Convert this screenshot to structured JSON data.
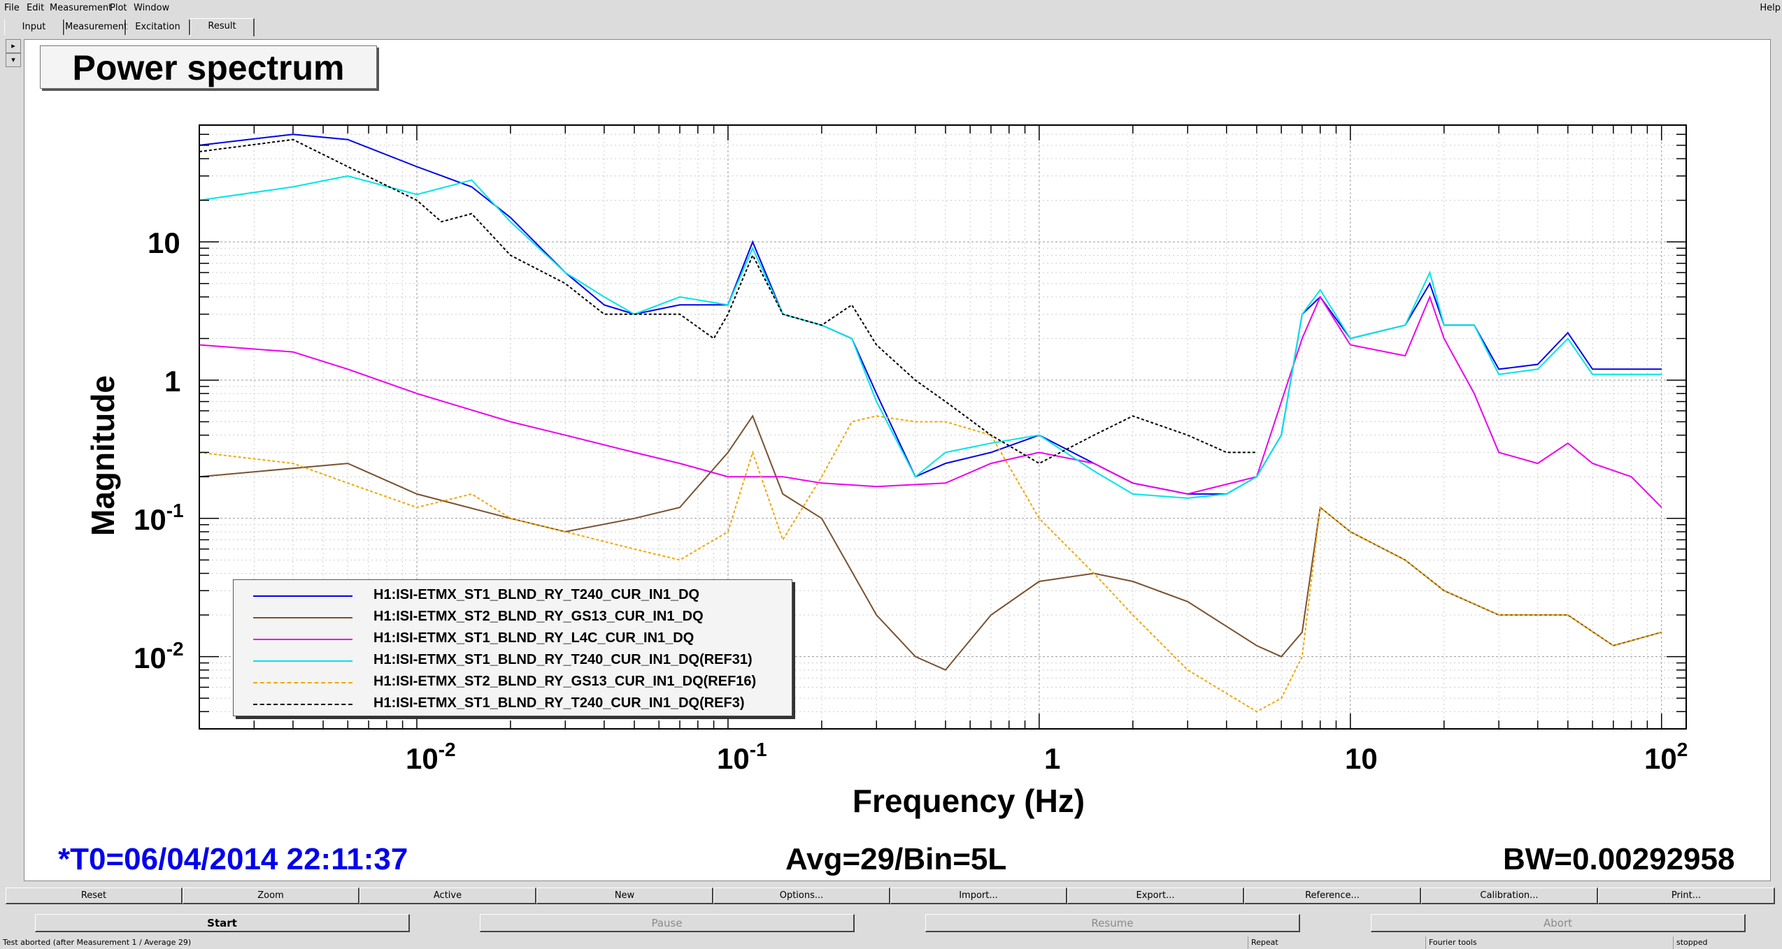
{
  "menu": {
    "items": [
      "File",
      "Edit",
      "Measurement",
      "Plot",
      "Window"
    ],
    "help": "Help"
  },
  "tabs": [
    "Input",
    "Measurement",
    "Excitation",
    "Result"
  ],
  "active_tab": "Result",
  "plot": {
    "title": "Power spectrum",
    "ylabel": "Magnitude",
    "xlabel": "Frequency (Hz)",
    "x_ticks": [
      {
        "base": "10",
        "exp": "-2"
      },
      {
        "base": "10",
        "exp": "-1"
      },
      {
        "base": "1",
        "exp": ""
      },
      {
        "base": "10",
        "exp": ""
      },
      {
        "base": "10",
        "exp": "2"
      }
    ],
    "y_ticks": [
      {
        "base": "10",
        "exp": ""
      },
      {
        "base": "1",
        "exp": ""
      },
      {
        "base": "10",
        "exp": "-1"
      },
      {
        "base": "10",
        "exp": "-2"
      }
    ],
    "t0": "*T0=06/04/2014 22:11:37",
    "avg": "Avg=29/Bin=5L",
    "bw": "BW=0.00292958",
    "t0_color": "#0000ee"
  },
  "legend": [
    {
      "label": "H1:ISI-ETMX_ST1_BLND_RY_T240_CUR_IN1_DQ",
      "color": "#0000ee",
      "style": "solid"
    },
    {
      "label": "H1:ISI-ETMX_ST2_BLND_RY_GS13_CUR_IN1_DQ",
      "color": "#7a5230",
      "style": "solid"
    },
    {
      "label": "H1:ISI-ETMX_ST1_BLND_RY_L4C_CUR_IN1_DQ",
      "color": "#ee00ee",
      "style": "solid"
    },
    {
      "label": "H1:ISI-ETMX_ST1_BLND_RY_T240_CUR_IN1_DQ(REF31)",
      "color": "#00e5e5",
      "style": "solid"
    },
    {
      "label": "H1:ISI-ETMX_ST2_BLND_RY_GS13_CUR_IN1_DQ(REF16)",
      "color": "#f0a800",
      "style": "dashed"
    },
    {
      "label": "H1:ISI-ETMX_ST1_BLND_RY_T240_CUR_IN1_DQ(REF3)",
      "color": "#000000",
      "style": "dashed"
    }
  ],
  "chart_data": {
    "type": "line",
    "title": "Power spectrum",
    "xlabel": "Frequency (Hz)",
    "ylabel": "Magnitude",
    "xscale": "log",
    "yscale": "log",
    "xlim": [
      0.002,
      120
    ],
    "ylim": [
      0.003,
      70
    ],
    "grid": true,
    "legend_placement": "bottom-left",
    "series": [
      {
        "name": "H1:ISI-ETMX_ST1_BLND_RY_T240_CUR_IN1_DQ",
        "color": "#0000ee",
        "x": [
          0.002,
          0.004,
          0.006,
          0.01,
          0.015,
          0.02,
          0.03,
          0.04,
          0.05,
          0.07,
          0.1,
          0.12,
          0.15,
          0.2,
          0.25,
          0.3,
          0.4,
          0.5,
          0.7,
          1,
          1.5,
          2,
          3,
          4,
          5,
          6,
          7,
          8,
          10,
          15,
          18,
          20,
          25,
          30,
          40,
          50,
          60,
          80,
          100
        ],
        "y": [
          50,
          60,
          55,
          35,
          25,
          15,
          6,
          3.5,
          3,
          3.5,
          3.5,
          10,
          3,
          2.5,
          2,
          0.8,
          0.2,
          0.25,
          0.3,
          0.4,
          0.25,
          0.18,
          0.15,
          0.15,
          0.2,
          0.4,
          3,
          4,
          2,
          2.5,
          5,
          2.5,
          2.5,
          1.2,
          1.3,
          2.2,
          1.2,
          1.2,
          1.2
        ]
      },
      {
        "name": "H1:ISI-ETMX_ST2_BLND_RY_GS13_CUR_IN1_DQ",
        "color": "#7a5230",
        "x": [
          0.002,
          0.006,
          0.01,
          0.02,
          0.03,
          0.05,
          0.07,
          0.1,
          0.12,
          0.15,
          0.2,
          0.3,
          0.4,
          0.5,
          0.7,
          1,
          1.5,
          2,
          3,
          5,
          6,
          7,
          8,
          10,
          15,
          20,
          30,
          50,
          70,
          100
        ],
        "y": [
          0.2,
          0.25,
          0.15,
          0.1,
          0.08,
          0.1,
          0.12,
          0.3,
          0.55,
          0.15,
          0.1,
          0.02,
          0.01,
          0.008,
          0.02,
          0.035,
          0.04,
          0.035,
          0.025,
          0.012,
          0.01,
          0.015,
          0.12,
          0.08,
          0.05,
          0.03,
          0.02,
          0.02,
          0.012,
          0.015
        ]
      },
      {
        "name": "H1:ISI-ETMX_ST1_BLND_RY_L4C_CUR_IN1_DQ",
        "color": "#ee00ee",
        "x": [
          0.002,
          0.004,
          0.006,
          0.01,
          0.02,
          0.03,
          0.05,
          0.07,
          0.1,
          0.15,
          0.2,
          0.3,
          0.5,
          0.7,
          1,
          1.5,
          2,
          3,
          5,
          7,
          8,
          10,
          15,
          18,
          20,
          25,
          30,
          40,
          50,
          60,
          80,
          100
        ],
        "y": [
          1.8,
          1.6,
          1.2,
          0.8,
          0.5,
          0.4,
          0.3,
          0.25,
          0.2,
          0.2,
          0.18,
          0.17,
          0.18,
          0.25,
          0.3,
          0.25,
          0.18,
          0.15,
          0.2,
          2,
          4,
          1.8,
          1.5,
          4,
          2,
          0.8,
          0.3,
          0.25,
          0.35,
          0.25,
          0.2,
          0.12
        ]
      },
      {
        "name": "H1:ISI-ETMX_ST1_BLND_RY_T240_CUR_IN1_DQ(REF31)",
        "color": "#00e5e5",
        "x": [
          0.002,
          0.004,
          0.006,
          0.01,
          0.015,
          0.02,
          0.03,
          0.04,
          0.05,
          0.07,
          0.1,
          0.12,
          0.15,
          0.2,
          0.25,
          0.3,
          0.4,
          0.5,
          0.7,
          1,
          1.5,
          2,
          3,
          4,
          5,
          6,
          7,
          8,
          10,
          15,
          18,
          20,
          25,
          30,
          40,
          50,
          60,
          80,
          100
        ],
        "y": [
          20,
          25,
          30,
          22,
          28,
          14,
          6,
          4,
          3,
          4,
          3.5,
          9,
          3,
          2.5,
          2,
          0.7,
          0.2,
          0.3,
          0.35,
          0.4,
          0.22,
          0.15,
          0.14,
          0.15,
          0.2,
          0.4,
          3,
          4.5,
          2,
          2.5,
          6,
          2.5,
          2.5,
          1.1,
          1.2,
          2,
          1.1,
          1.1,
          1.1
        ]
      },
      {
        "name": "H1:ISI-ETMX_ST2_BLND_RY_GS13_CUR_IN1_DQ(REF16)",
        "color": "#f0a800",
        "x": [
          0.002,
          0.004,
          0.006,
          0.01,
          0.015,
          0.02,
          0.03,
          0.05,
          0.07,
          0.1,
          0.12,
          0.15,
          0.2,
          0.25,
          0.3,
          0.4,
          0.5,
          0.7,
          1,
          1.5,
          2,
          3,
          5,
          6,
          7,
          8,
          10,
          15,
          20,
          30,
          50,
          70,
          100
        ],
        "y": [
          0.3,
          0.25,
          0.18,
          0.12,
          0.15,
          0.1,
          0.08,
          0.06,
          0.05,
          0.08,
          0.3,
          0.07,
          0.2,
          0.5,
          0.55,
          0.5,
          0.5,
          0.4,
          0.1,
          0.04,
          0.02,
          0.008,
          0.004,
          0.005,
          0.01,
          0.12,
          0.08,
          0.05,
          0.03,
          0.02,
          0.02,
          0.012,
          0.015
        ]
      },
      {
        "name": "H1:ISI-ETMX_ST1_BLND_RY_T240_CUR_IN1_DQ(REF3)",
        "color": "#000000",
        "x": [
          0.002,
          0.004,
          0.006,
          0.01,
          0.012,
          0.015,
          0.02,
          0.03,
          0.04,
          0.05,
          0.07,
          0.09,
          0.1,
          0.12,
          0.15,
          0.2,
          0.25,
          0.3,
          0.4,
          0.5,
          0.7,
          1,
          1.5,
          2,
          3,
          4,
          5
        ],
        "y": [
          45,
          55,
          35,
          20,
          14,
          16,
          8,
          5,
          3,
          3,
          3,
          2,
          3,
          8,
          3,
          2.5,
          3.5,
          1.8,
          1,
          0.7,
          0.4,
          0.25,
          0.4,
          0.55,
          0.4,
          0.3,
          0.3
        ]
      }
    ]
  },
  "toolbar1": [
    "Reset",
    "Zoom",
    "Active",
    "New",
    "Options...",
    "Import...",
    "Export...",
    "Reference...",
    "Calibration...",
    "Print..."
  ],
  "toolbar2": [
    {
      "label": "Start",
      "enabled": true
    },
    {
      "label": "Pause",
      "enabled": false
    },
    {
      "label": "Resume",
      "enabled": false
    },
    {
      "label": "Abort",
      "enabled": false
    }
  ],
  "status": {
    "message": "Test aborted (after Measurement 1 / Average 29)",
    "repeat": "Repeat",
    "tools": "Fourier tools",
    "state": "stopped"
  }
}
